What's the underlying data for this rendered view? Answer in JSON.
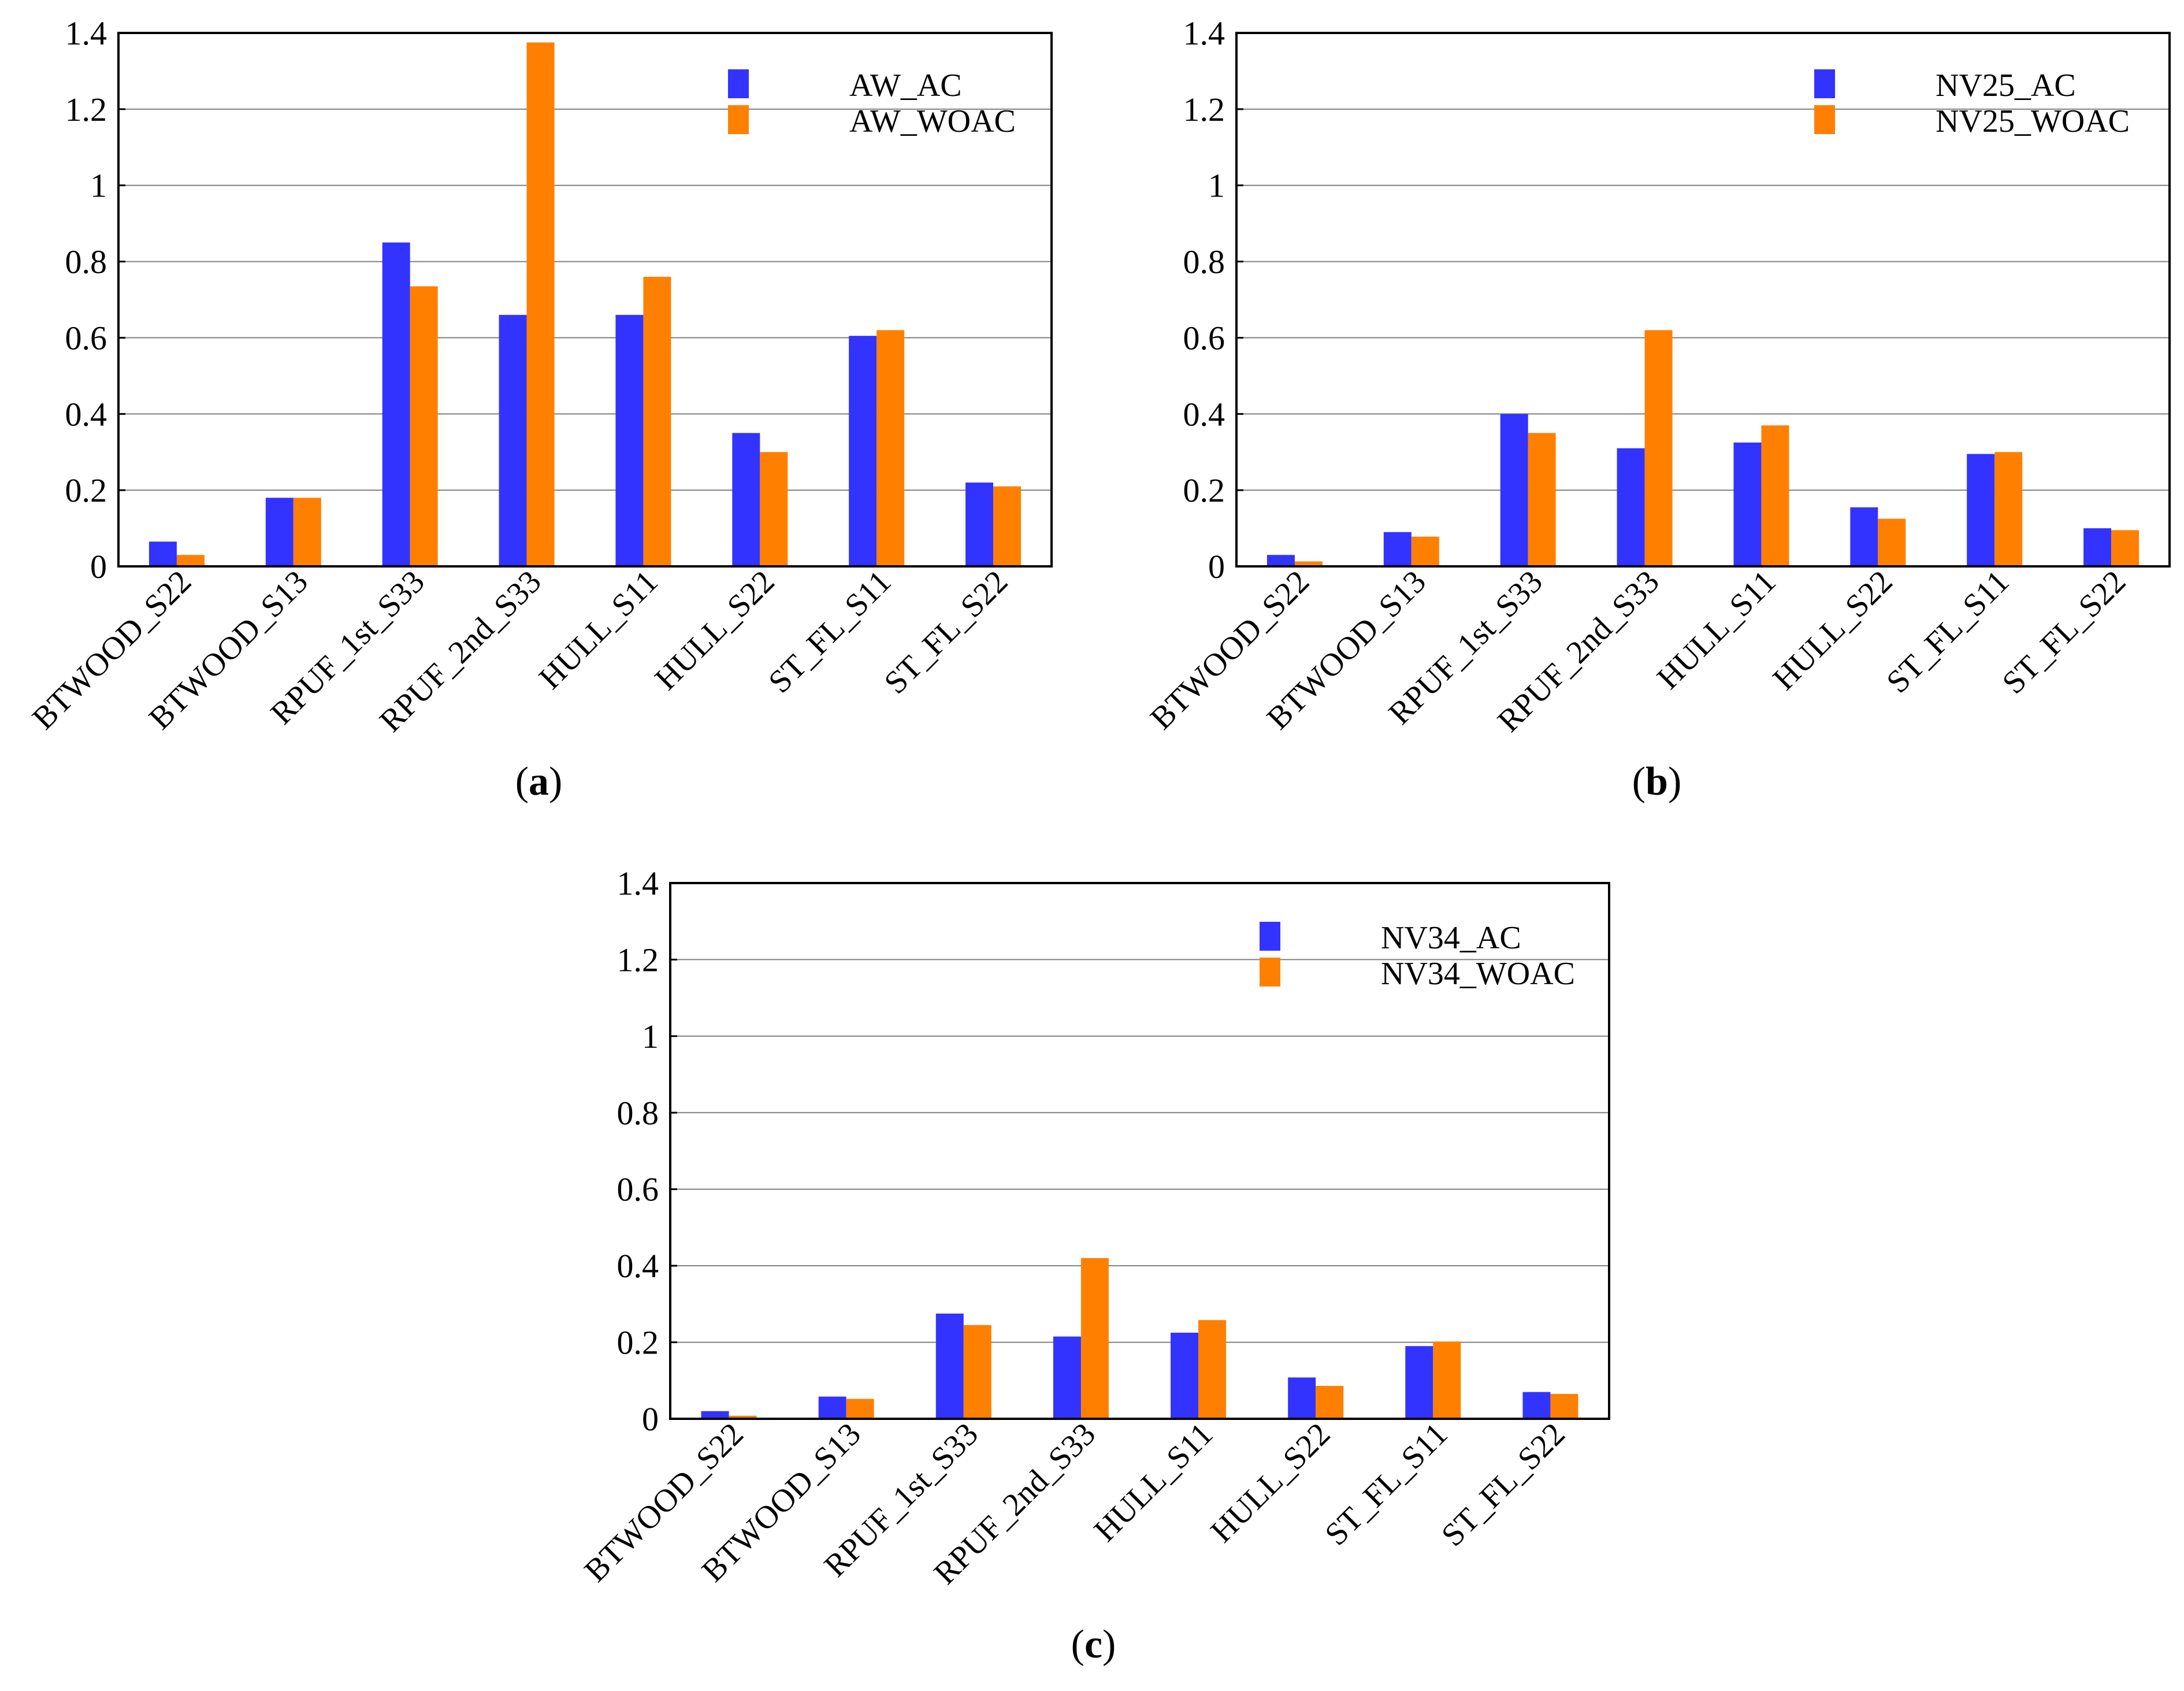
{
  "figure": {
    "colors": {
      "ac": "#3333ff",
      "woac": "#ff8000",
      "grid": "#808080",
      "axis": "#000000"
    }
  },
  "chart_data": [
    {
      "type": "bar",
      "caption": {
        "open": "(",
        "letter": "a",
        "close": ")"
      },
      "categories": [
        "BTWOOD_S22",
        "BTWOOD_S13",
        "RPUF_1st_S33",
        "RPUF_2nd_S33",
        "HULL_S11",
        "HULL_S22",
        "ST_FL_S11",
        "ST_FL_S22"
      ],
      "series": [
        {
          "name": "AW_AC",
          "values": [
            0.065,
            0.18,
            0.85,
            0.66,
            0.66,
            0.35,
            0.605,
            0.22
          ]
        },
        {
          "name": "AW_WOAC",
          "values": [
            0.03,
            0.18,
            0.735,
            1.375,
            0.76,
            0.3,
            0.62,
            0.21
          ]
        }
      ],
      "ylim": [
        0,
        1.4
      ],
      "yticks": [
        "0",
        "0.2",
        "0.4",
        "0.6",
        "0.8",
        "1",
        "1.2",
        "1.4"
      ],
      "grid": true,
      "legend": "top-right"
    },
    {
      "type": "bar",
      "caption": {
        "open": "(",
        "letter": "b",
        "close": ")"
      },
      "categories": [
        "BTWOOD_S22",
        "BTWOOD_S13",
        "RPUF_1st_S33",
        "RPUF_2nd_S33",
        "HULL_S11",
        "HULL_S22",
        "ST_FL_S11",
        "ST_FL_S22"
      ],
      "series": [
        {
          "name": "NV25_AC",
          "values": [
            0.03,
            0.09,
            0.4,
            0.31,
            0.325,
            0.155,
            0.295,
            0.1
          ]
        },
        {
          "name": "NV25_WOAC",
          "values": [
            0.013,
            0.078,
            0.35,
            0.62,
            0.37,
            0.125,
            0.3,
            0.095
          ]
        }
      ],
      "ylim": [
        0,
        1.4
      ],
      "yticks": [
        "0",
        "0.2",
        "0.4",
        "0.6",
        "0.8",
        "1",
        "1.2",
        "1.4"
      ],
      "grid": true,
      "legend": "top-right"
    },
    {
      "type": "bar",
      "caption": {
        "open": "(",
        "letter": "c",
        "close": ")"
      },
      "categories": [
        "BTWOOD_S22",
        "BTWOOD_S13",
        "RPUF_1st_S33",
        "RPUF_2nd_S33",
        "HULL_S11",
        "HULL_S22",
        "ST_FL_S11",
        "ST_FL_S22"
      ],
      "series": [
        {
          "name": "NV34_AC",
          "values": [
            0.02,
            0.058,
            0.275,
            0.215,
            0.225,
            0.108,
            0.19,
            0.07
          ]
        },
        {
          "name": "NV34_WOAC",
          "values": [
            0.008,
            0.052,
            0.245,
            0.42,
            0.258,
            0.086,
            0.202,
            0.065
          ]
        }
      ],
      "ylim": [
        0,
        1.4
      ],
      "yticks": [
        "0",
        "0.2",
        "0.4",
        "0.6",
        "0.8",
        "1",
        "1.2",
        "1.4"
      ],
      "grid": true,
      "legend": "top-right"
    }
  ]
}
